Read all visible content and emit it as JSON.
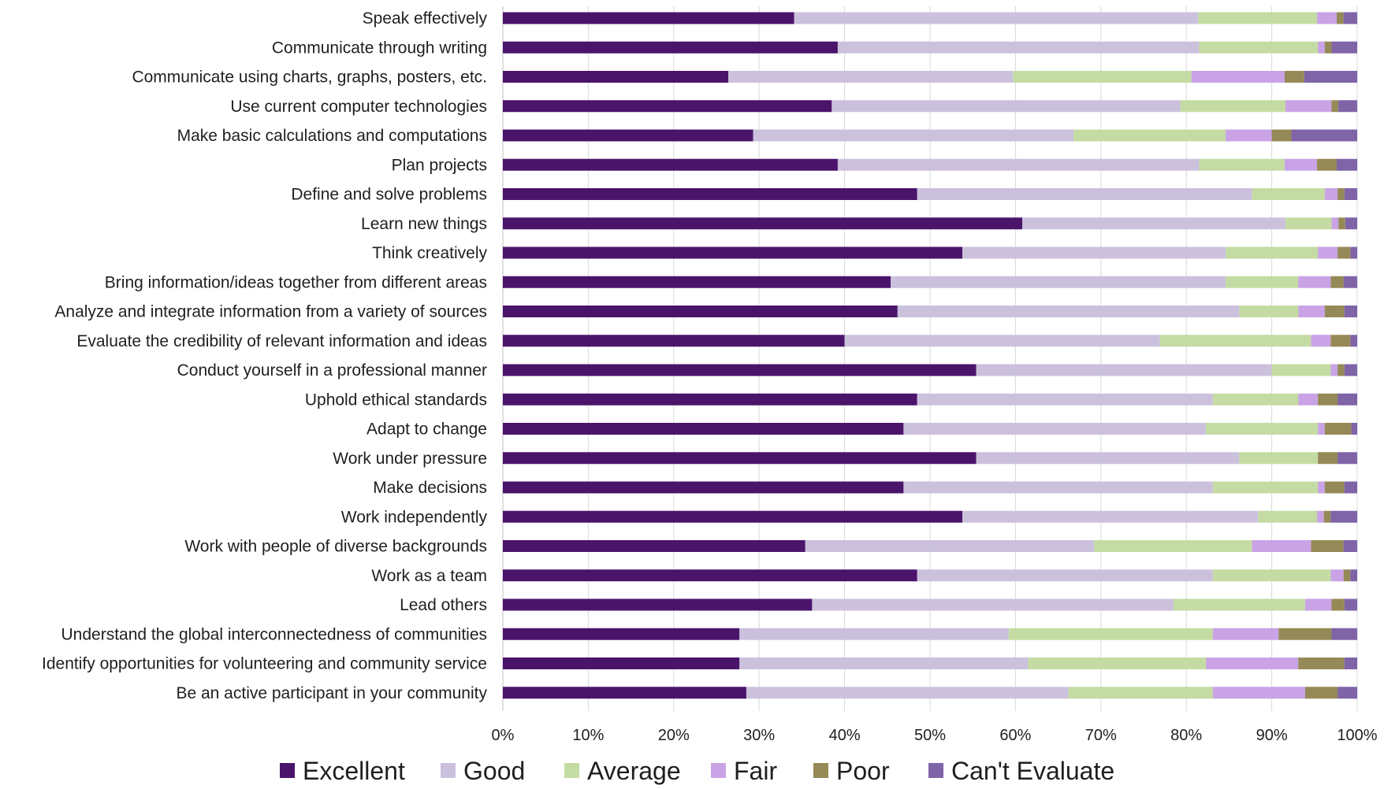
{
  "chart_data": {
    "type": "bar",
    "orientation": "horizontal",
    "stacked": "percent",
    "categories": [
      "Speak effectively",
      "Communicate through writing",
      "Communicate using charts, graphs, posters, etc.",
      "Use current computer technologies",
      "Make basic calculations and computations",
      "Plan projects",
      "Define and solve problems",
      "Learn new things",
      "Think creatively",
      "Bring information/ideas together from different areas",
      "Analyze and integrate information from a variety of sources",
      "Evaluate the credibility of relevant information and ideas",
      "Conduct yourself in a professional manner",
      "Uphold ethical standards",
      "Adapt to change",
      "Work under pressure",
      "Make decisions",
      "Work independently",
      "Work with people of diverse backgrounds",
      "Work as a team",
      "Lead others",
      "Understand the global interconnectedness of communities",
      "Identify opportunities for volunteering and community service",
      "Be an active participant in your community"
    ],
    "series": [
      {
        "name": "Excellent",
        "color": "#4b146b",
        "values": [
          34.1,
          39.2,
          26.4,
          38.5,
          29.3,
          39.2,
          48.5,
          60.8,
          53.8,
          45.4,
          46.2,
          40.0,
          55.4,
          48.5,
          46.9,
          55.4,
          46.9,
          53.8,
          35.4,
          48.5,
          36.2,
          27.7,
          27.7,
          28.5
        ]
      },
      {
        "name": "Good",
        "color": "#cbc1dd",
        "values": [
          47.3,
          42.3,
          33.3,
          40.8,
          37.5,
          42.3,
          39.2,
          30.8,
          30.8,
          39.2,
          40.0,
          36.9,
          34.6,
          34.6,
          35.4,
          30.8,
          36.2,
          34.6,
          33.8,
          34.6,
          42.3,
          31.5,
          33.8,
          37.7
        ]
      },
      {
        "name": "Average",
        "color": "#c4dca3",
        "values": [
          13.9,
          13.9,
          20.9,
          12.3,
          17.8,
          10.0,
          8.5,
          5.4,
          10.8,
          8.5,
          6.9,
          17.7,
          6.9,
          10.0,
          13.1,
          9.2,
          12.3,
          6.9,
          18.5,
          13.8,
          15.4,
          23.9,
          20.8,
          16.9
        ]
      },
      {
        "name": "Fair",
        "color": "#c9a3e6",
        "values": [
          2.3,
          0.8,
          10.9,
          5.4,
          5.4,
          3.8,
          1.5,
          0.8,
          2.3,
          3.8,
          3.1,
          2.3,
          0.8,
          2.3,
          0.8,
          0.0,
          0.8,
          0.8,
          6.9,
          1.5,
          3.1,
          7.7,
          10.8,
          10.8
        ]
      },
      {
        "name": "Poor",
        "color": "#958a57",
        "values": [
          0.8,
          0.8,
          2.3,
          0.8,
          2.3,
          2.3,
          0.8,
          0.8,
          1.5,
          1.5,
          2.3,
          2.3,
          0.8,
          2.3,
          3.1,
          2.3,
          2.3,
          0.8,
          3.8,
          0.8,
          1.5,
          6.2,
          5.4,
          3.8
        ]
      },
      {
        "name": "Can't Evaluate",
        "color": "#7f64a8",
        "values": [
          1.6,
          3.0,
          6.2,
          2.2,
          7.7,
          2.4,
          1.5,
          1.4,
          0.8,
          1.6,
          1.5,
          0.8,
          1.5,
          2.3,
          0.7,
          2.3,
          1.5,
          3.1,
          1.6,
          0.8,
          1.5,
          3.0,
          1.5,
          2.3
        ]
      }
    ],
    "x_ticks": [
      "0%",
      "10%",
      "20%",
      "30%",
      "40%",
      "50%",
      "60%",
      "70%",
      "80%",
      "90%",
      "100%"
    ],
    "xlim": [
      0,
      100
    ],
    "grid": "vertical",
    "legend_position": "bottom",
    "title": "",
    "xlabel": "",
    "ylabel": ""
  }
}
